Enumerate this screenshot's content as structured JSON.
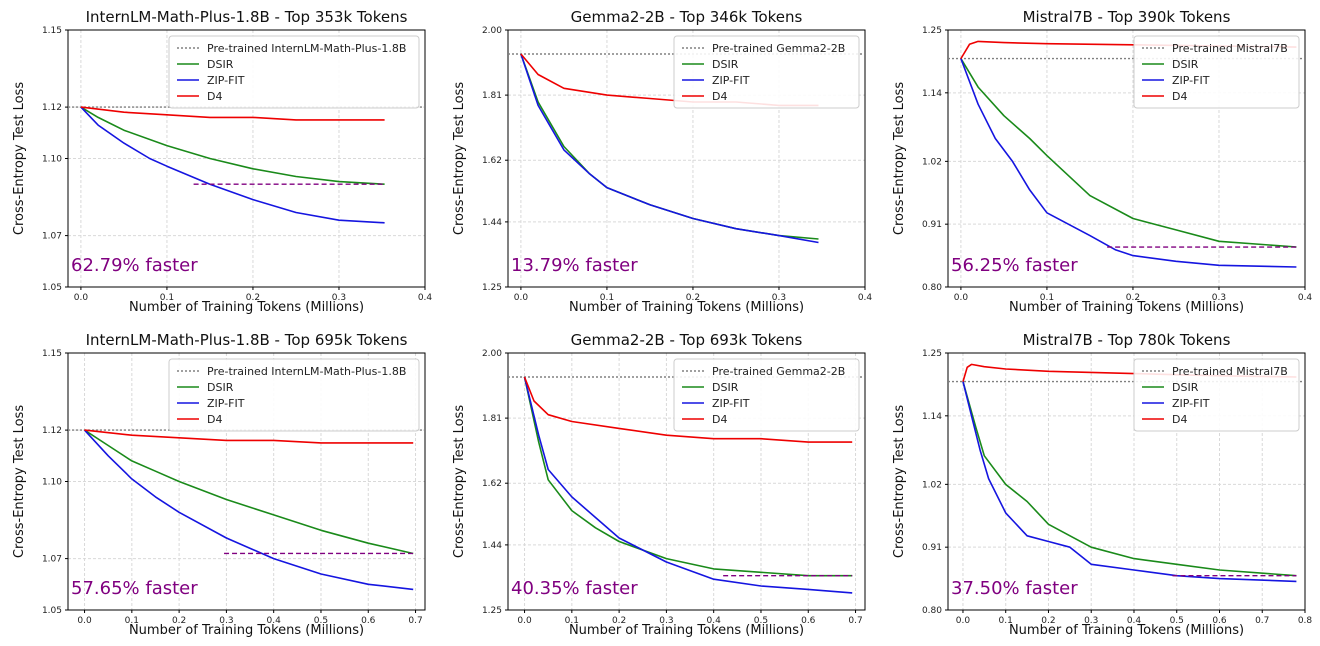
{
  "figure": {
    "colors": {
      "pretrained": "#808080",
      "dsir": "#1a8a1a",
      "zipfit": "#1515e0",
      "d4": "#ee0000",
      "annotation": "#800080",
      "grid": "#d9d9d9"
    }
  },
  "chart_data": [
    {
      "type": "line",
      "title": "InternLM-Math-Plus-1.8B - Top 353k Tokens",
      "xlabel": "Number of Training Tokens (Millions)",
      "ylabel": "Cross-Entropy Test Loss",
      "xlim": [
        -0.015,
        0.4
      ],
      "ylim": [
        1.05,
        1.15
      ],
      "xticks": [
        0.0,
        0.1,
        0.2,
        0.3,
        0.4
      ],
      "xtick_labels": [
        "0.0",
        "0.1",
        "0.2",
        "0.3",
        "0.4"
      ],
      "yticks": [
        1.05,
        1.07,
        1.1,
        1.12,
        1.15
      ],
      "ytick_labels": [
        "1.05",
        "1.07",
        "1.10",
        "1.12",
        "1.15"
      ],
      "grid": true,
      "legend": "top-right",
      "annotation": "62.79% faster",
      "pretrained_level": 1.12,
      "series": [
        {
          "name": "Pre-trained InternLM-Math-Plus-1.8B",
          "style": "dotted",
          "x": [
            -0.015,
            0.4
          ],
          "y": [
            1.12,
            1.12
          ]
        },
        {
          "name": "DSIR",
          "x": [
            0.0,
            0.02,
            0.05,
            0.1,
            0.15,
            0.2,
            0.25,
            0.3,
            0.353
          ],
          "y": [
            1.12,
            1.116,
            1.111,
            1.105,
            1.1,
            1.096,
            1.093,
            1.091,
            1.09
          ]
        },
        {
          "name": "ZIP-FIT",
          "x": [
            0.0,
            0.02,
            0.05,
            0.08,
            0.1,
            0.15,
            0.2,
            0.25,
            0.3,
            0.353
          ],
          "y": [
            1.12,
            1.113,
            1.106,
            1.1,
            1.097,
            1.09,
            1.084,
            1.079,
            1.076,
            1.075
          ]
        },
        {
          "name": "D4",
          "x": [
            0.0,
            0.05,
            0.1,
            0.15,
            0.2,
            0.25,
            0.3,
            0.353
          ],
          "y": [
            1.12,
            1.118,
            1.117,
            1.116,
            1.116,
            1.115,
            1.115,
            1.115
          ]
        }
      ],
      "speedup": {
        "x": [
          0.131,
          0.353
        ],
        "y": 1.09
      }
    },
    {
      "type": "line",
      "title": "Gemma2-2B - Top 346k Tokens",
      "xlabel": "Number of Training Tokens (Millions)",
      "ylabel": "Cross-Entropy Test Loss",
      "xlim": [
        -0.015,
        0.4
      ],
      "ylim": [
        1.25,
        2.0
      ],
      "xticks": [
        0.0,
        0.1,
        0.2,
        0.3,
        0.4
      ],
      "xtick_labels": [
        "0.0",
        "0.1",
        "0.2",
        "0.3",
        "0.4"
      ],
      "yticks": [
        1.25,
        1.44,
        1.62,
        1.81,
        2.0
      ],
      "ytick_labels": [
        "1.25",
        "1.44",
        "1.62",
        "1.81",
        "2.00"
      ],
      "grid": true,
      "legend": "top-right",
      "annotation": "13.79% faster",
      "pretrained_level": 1.93,
      "series": [
        {
          "name": "Pre-trained Gemma2-2B",
          "style": "dotted",
          "x": [
            -0.015,
            0.4
          ],
          "y": [
            1.93,
            1.93
          ]
        },
        {
          "name": "DSIR",
          "x": [
            0.0,
            0.02,
            0.05,
            0.08,
            0.1,
            0.15,
            0.2,
            0.25,
            0.3,
            0.346
          ],
          "y": [
            1.93,
            1.79,
            1.66,
            1.58,
            1.54,
            1.49,
            1.45,
            1.42,
            1.4,
            1.39
          ]
        },
        {
          "name": "ZIP-FIT",
          "x": [
            0.0,
            0.02,
            0.05,
            0.08,
            0.1,
            0.15,
            0.2,
            0.25,
            0.3,
            0.346
          ],
          "y": [
            1.93,
            1.78,
            1.65,
            1.58,
            1.54,
            1.49,
            1.45,
            1.42,
            1.4,
            1.38
          ]
        },
        {
          "name": "D4",
          "x": [
            0.0,
            0.02,
            0.05,
            0.1,
            0.15,
            0.2,
            0.25,
            0.3,
            0.346
          ],
          "y": [
            1.93,
            1.87,
            1.83,
            1.81,
            1.8,
            1.79,
            1.79,
            1.78,
            1.78
          ]
        }
      ],
      "speedup": null
    },
    {
      "type": "line",
      "title": "Mistral7B - Top 390k Tokens",
      "xlabel": "Number of Training Tokens (Millions)",
      "ylabel": "Cross-Entropy Test Loss",
      "xlim": [
        -0.015,
        0.4
      ],
      "ylim": [
        0.8,
        1.25
      ],
      "xticks": [
        0.0,
        0.1,
        0.2,
        0.3,
        0.4
      ],
      "xtick_labels": [
        "0.0",
        "0.1",
        "0.2",
        "0.3",
        "0.4"
      ],
      "yticks": [
        0.8,
        0.91,
        1.02,
        1.14,
        1.25
      ],
      "ytick_labels": [
        "0.80",
        "0.91",
        "1.02",
        "1.14",
        "1.25"
      ],
      "grid": true,
      "legend": "top-right",
      "annotation": "56.25% faster",
      "pretrained_level": 1.2,
      "series": [
        {
          "name": "Pre-trained Mistral7B",
          "style": "dotted",
          "x": [
            -0.015,
            0.4
          ],
          "y": [
            1.2,
            1.2
          ]
        },
        {
          "name": "DSIR",
          "x": [
            0.0,
            0.02,
            0.05,
            0.08,
            0.1,
            0.15,
            0.2,
            0.25,
            0.3,
            0.39
          ],
          "y": [
            1.2,
            1.15,
            1.1,
            1.06,
            1.03,
            0.96,
            0.92,
            0.9,
            0.88,
            0.87
          ]
        },
        {
          "name": "ZIP-FIT",
          "x": [
            0.0,
            0.02,
            0.04,
            0.06,
            0.08,
            0.1,
            0.15,
            0.18,
            0.2,
            0.25,
            0.3,
            0.39
          ],
          "y": [
            1.2,
            1.12,
            1.06,
            1.02,
            0.97,
            0.93,
            0.89,
            0.865,
            0.855,
            0.845,
            0.838,
            0.835
          ]
        },
        {
          "name": "D4",
          "x": [
            0.0,
            0.01,
            0.02,
            0.05,
            0.1,
            0.2,
            0.3,
            0.39
          ],
          "y": [
            1.2,
            1.225,
            1.23,
            1.228,
            1.226,
            1.224,
            1.222,
            1.22
          ]
        }
      ],
      "speedup": {
        "x": [
          0.17,
          0.39
        ],
        "y": 0.87
      }
    },
    {
      "type": "line",
      "title": "InternLM-Math-Plus-1.8B - Top 695k Tokens",
      "xlabel": "Number of Training Tokens (Millions)",
      "ylabel": "Cross-Entropy Test Loss",
      "xlim": [
        -0.035,
        0.72
      ],
      "ylim": [
        1.05,
        1.15
      ],
      "xticks": [
        0.0,
        0.1,
        0.2,
        0.3,
        0.4,
        0.5,
        0.6,
        0.7
      ],
      "xtick_labels": [
        "0.0",
        "0.1",
        "0.2",
        "0.3",
        "0.4",
        "0.5",
        "0.6",
        "0.7"
      ],
      "yticks": [
        1.05,
        1.07,
        1.1,
        1.12,
        1.15
      ],
      "ytick_labels": [
        "1.05",
        "1.07",
        "1.10",
        "1.12",
        "1.15"
      ],
      "grid": true,
      "legend": "top-right",
      "annotation": "57.65% faster",
      "pretrained_level": 1.12,
      "series": [
        {
          "name": "Pre-trained InternLM-Math-Plus-1.8B",
          "style": "dotted",
          "x": [
            -0.035,
            0.72
          ],
          "y": [
            1.12,
            1.12
          ]
        },
        {
          "name": "DSIR",
          "x": [
            0.0,
            0.05,
            0.1,
            0.15,
            0.2,
            0.3,
            0.4,
            0.5,
            0.6,
            0.695
          ],
          "y": [
            1.12,
            1.114,
            1.108,
            1.104,
            1.1,
            1.093,
            1.087,
            1.081,
            1.076,
            1.072
          ]
        },
        {
          "name": "ZIP-FIT",
          "x": [
            0.0,
            0.05,
            0.1,
            0.15,
            0.2,
            0.3,
            0.4,
            0.5,
            0.6,
            0.695
          ],
          "y": [
            1.12,
            1.11,
            1.101,
            1.094,
            1.088,
            1.078,
            1.07,
            1.064,
            1.06,
            1.058
          ]
        },
        {
          "name": "D4",
          "x": [
            0.0,
            0.1,
            0.2,
            0.3,
            0.4,
            0.5,
            0.6,
            0.695
          ],
          "y": [
            1.12,
            1.118,
            1.117,
            1.116,
            1.116,
            1.115,
            1.115,
            1.115
          ]
        }
      ],
      "speedup": {
        "x": [
          0.295,
          0.695
        ],
        "y": 1.072
      }
    },
    {
      "type": "line",
      "title": "Gemma2-2B - Top 693k Tokens",
      "xlabel": "Number of Training Tokens (Millions)",
      "ylabel": "Cross-Entropy Test Loss",
      "xlim": [
        -0.035,
        0.72
      ],
      "ylim": [
        1.25,
        2.0
      ],
      "xticks": [
        0.0,
        0.1,
        0.2,
        0.3,
        0.4,
        0.5,
        0.6,
        0.7
      ],
      "xtick_labels": [
        "0.0",
        "0.1",
        "0.2",
        "0.3",
        "0.4",
        "0.5",
        "0.6",
        "0.7"
      ],
      "yticks": [
        1.25,
        1.44,
        1.62,
        1.81,
        2.0
      ],
      "ytick_labels": [
        "1.25",
        "1.44",
        "1.62",
        "1.81",
        "2.00"
      ],
      "grid": true,
      "legend": "top-right",
      "annotation": "40.35% faster",
      "pretrained_level": 1.93,
      "series": [
        {
          "name": "Pre-trained Gemma2-2B",
          "style": "dotted",
          "x": [
            -0.035,
            0.72
          ],
          "y": [
            1.93,
            1.93
          ]
        },
        {
          "name": "DSIR",
          "x": [
            0.0,
            0.03,
            0.05,
            0.1,
            0.15,
            0.2,
            0.3,
            0.4,
            0.5,
            0.6,
            0.693
          ],
          "y": [
            1.93,
            1.74,
            1.63,
            1.54,
            1.49,
            1.45,
            1.4,
            1.37,
            1.36,
            1.35,
            1.35
          ]
        },
        {
          "name": "ZIP-FIT",
          "x": [
            0.0,
            0.03,
            0.05,
            0.1,
            0.15,
            0.2,
            0.3,
            0.4,
            0.5,
            0.6,
            0.693
          ],
          "y": [
            1.93,
            1.76,
            1.66,
            1.58,
            1.52,
            1.46,
            1.39,
            1.34,
            1.32,
            1.31,
            1.3
          ]
        },
        {
          "name": "D4",
          "x": [
            0.0,
            0.02,
            0.05,
            0.1,
            0.2,
            0.3,
            0.4,
            0.5,
            0.6,
            0.693
          ],
          "y": [
            1.93,
            1.86,
            1.82,
            1.8,
            1.78,
            1.76,
            1.75,
            1.75,
            1.74,
            1.74
          ]
        }
      ],
      "speedup": {
        "x": [
          0.42,
          0.693
        ],
        "y": 1.35
      }
    },
    {
      "type": "line",
      "title": "Mistral7B - Top 780k Tokens",
      "xlabel": "Number of Training Tokens (Millions)",
      "ylabel": "Cross-Entropy Test Loss",
      "xlim": [
        -0.035,
        0.8
      ],
      "ylim": [
        0.8,
        1.25
      ],
      "xticks": [
        0.0,
        0.1,
        0.2,
        0.3,
        0.4,
        0.5,
        0.6,
        0.7,
        0.8
      ],
      "xtick_labels": [
        "0.0",
        "0.1",
        "0.2",
        "0.3",
        "0.4",
        "0.5",
        "0.6",
        "0.7",
        "0.8"
      ],
      "yticks": [
        0.8,
        0.91,
        1.02,
        1.14,
        1.25
      ],
      "ytick_labels": [
        "0.80",
        "0.91",
        "1.02",
        "1.14",
        "1.25"
      ],
      "grid": true,
      "legend": "top-right",
      "annotation": "37.50% faster",
      "pretrained_level": 1.2,
      "series": [
        {
          "name": "Pre-trained Mistral7B",
          "style": "dotted",
          "x": [
            -0.035,
            0.8
          ],
          "y": [
            1.2,
            1.2
          ]
        },
        {
          "name": "DSIR",
          "x": [
            0.0,
            0.03,
            0.05,
            0.1,
            0.15,
            0.2,
            0.3,
            0.4,
            0.5,
            0.6,
            0.78
          ],
          "y": [
            1.2,
            1.12,
            1.07,
            1.02,
            0.99,
            0.95,
            0.91,
            0.89,
            0.88,
            0.87,
            0.86
          ]
        },
        {
          "name": "ZIP-FIT",
          "x": [
            0.0,
            0.02,
            0.04,
            0.06,
            0.1,
            0.15,
            0.2,
            0.25,
            0.3,
            0.4,
            0.5,
            0.6,
            0.78
          ],
          "y": [
            1.2,
            1.14,
            1.08,
            1.03,
            0.97,
            0.93,
            0.92,
            0.91,
            0.88,
            0.87,
            0.86,
            0.855,
            0.85
          ]
        },
        {
          "name": "D4",
          "x": [
            0.0,
            0.01,
            0.02,
            0.05,
            0.1,
            0.2,
            0.4,
            0.6,
            0.78
          ],
          "y": [
            1.2,
            1.225,
            1.23,
            1.226,
            1.222,
            1.218,
            1.214,
            1.21,
            1.208
          ]
        }
      ],
      "speedup": {
        "x": [
          0.49,
          0.78
        ],
        "y": 0.86
      }
    }
  ]
}
